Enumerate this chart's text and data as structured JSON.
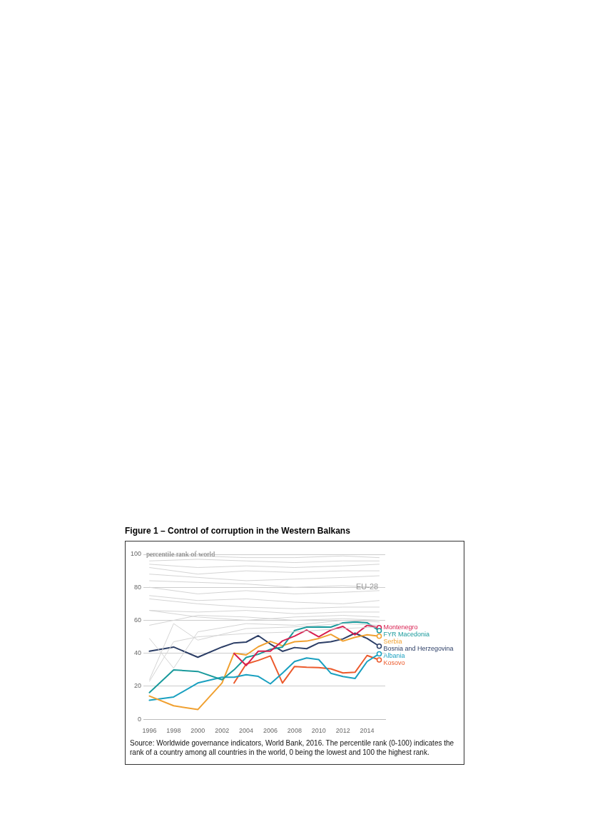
{
  "chart_data": {
    "type": "line",
    "title": "Figure 1 – Control of corruption in the Western Balkans",
    "ylabel": "percentile rank of world",
    "x": [
      1996,
      1998,
      2000,
      2002,
      2003,
      2004,
      2005,
      2006,
      2007,
      2008,
      2009,
      2010,
      2011,
      2012,
      2013,
      2014,
      2015
    ],
    "xlim": [
      1995.5,
      2015.5
    ],
    "xticks": [
      1996,
      1998,
      2000,
      2002,
      2004,
      2006,
      2008,
      2010,
      2012,
      2014
    ],
    "ylim": [
      0,
      100
    ],
    "yticks": [
      0,
      20,
      40,
      60,
      80,
      100
    ],
    "grid": "y",
    "line_style": "solid",
    "series": [
      {
        "color": "#d4d4d4",
        "x": [
          1996,
          2000,
          2004,
          2008,
          2012,
          2015
        ],
        "values": [
          99,
          99,
          98,
          98,
          99,
          98
        ]
      },
      {
        "color": "#d4d4d4",
        "x": [
          1996,
          2000,
          2004,
          2008,
          2012,
          2015
        ],
        "values": [
          96,
          97,
          96,
          95,
          96,
          96
        ]
      },
      {
        "color": "#d4d4d4",
        "x": [
          1996,
          2000,
          2004,
          2008,
          2012,
          2015
        ],
        "values": [
          94,
          92,
          93,
          92,
          93,
          94
        ]
      },
      {
        "color": "#d4d4d4",
        "x": [
          1996,
          2000,
          2004,
          2008,
          2012,
          2015
        ],
        "values": [
          92,
          88,
          90,
          89,
          90,
          90
        ]
      },
      {
        "color": "#d4d4d4",
        "x": [
          1996,
          2000,
          2004,
          2008,
          2012,
          2015
        ],
        "values": [
          88,
          86,
          84,
          85,
          86,
          87
        ]
      },
      {
        "color": "#d4d4d4",
        "x": [
          1996,
          2000,
          2004,
          2008,
          2012,
          2015
        ],
        "values": [
          84,
          83,
          82,
          80,
          81,
          80
        ]
      },
      {
        "color": "#d4d4d4",
        "x": [
          1996,
          2000,
          2004,
          2008,
          2012,
          2015
        ],
        "values": [
          80,
          76,
          78,
          76,
          77,
          78
        ]
      },
      {
        "color": "#d4d4d4",
        "x": [
          1996,
          2000,
          2004,
          2008,
          2012,
          2015
        ],
        "values": [
          75,
          72,
          73,
          71,
          70,
          72
        ]
      },
      {
        "color": "#d4d4d4",
        "x": [
          1996,
          2000,
          2004,
          2008,
          2012,
          2015
        ],
        "values": [
          73,
          70,
          68,
          67,
          68,
          68
        ]
      },
      {
        "color": "#d4d4d4",
        "x": [
          1996,
          2000,
          2004,
          2008,
          2012,
          2015
        ],
        "values": [
          66,
          65,
          66,
          64,
          65,
          65
        ]
      },
      {
        "color": "#d4d4d4",
        "x": [
          1996,
          2000,
          2004,
          2008,
          2012,
          2015
        ],
        "values": [
          66,
          62,
          60,
          62,
          63,
          62
        ]
      },
      {
        "color": "#d4d4d4",
        "x": [
          1996,
          2000,
          2004,
          2008,
          2012,
          2015
        ],
        "values": [
          57,
          63,
          62,
          60,
          61,
          60
        ]
      },
      {
        "color": "#d4d4d4",
        "x": [
          1996,
          1998,
          2000,
          2004,
          2008,
          2012,
          2015
        ],
        "values": [
          49,
          31,
          53,
          58,
          57,
          60,
          59
        ]
      },
      {
        "color": "#d4d4d4",
        "x": [
          1996,
          1998,
          2000,
          2004,
          2008,
          2012,
          2015
        ],
        "values": [
          24,
          58,
          48,
          55,
          56,
          58,
          57
        ]
      },
      {
        "color": "#d4d4d4",
        "x": [
          1996,
          1998,
          2000,
          2004,
          2008,
          2012,
          2015
        ],
        "values": [
          23,
          47,
          50,
          52,
          53,
          55,
          56
        ]
      },
      {
        "name": "Montenegro",
        "color": "#d81e4f",
        "values": [
          null,
          null,
          null,
          null,
          39.9,
          32.6,
          41.3,
          41.3,
          47.5,
          50.4,
          54.1,
          50,
          54.1,
          56.3,
          51.2,
          57,
          55.6
        ]
      },
      {
        "name": "FYR Macedonia",
        "color": "#1a9a9c",
        "values": [
          16.2,
          29.9,
          29,
          24,
          30,
          37.5,
          39.4,
          42.4,
          43.8,
          53.8,
          55.9,
          56,
          55.9,
          58.5,
          59,
          58.5,
          53.7
        ]
      },
      {
        "name": "Serbia",
        "color": "#f0a030",
        "values": [
          14.1,
          8.2,
          5.9,
          22,
          40.1,
          39,
          44,
          47.2,
          44.6,
          47,
          47.4,
          49,
          51.5,
          47.4,
          49.7,
          51.2,
          50.4
        ]
      },
      {
        "name": "Bosnia and Herzegovina",
        "color": "#2c3e66",
        "values": [
          41.3,
          43.8,
          37.6,
          43.8,
          46.3,
          46.8,
          50.7,
          45.6,
          41.2,
          43.5,
          42.8,
          46.3,
          47,
          48.7,
          52.2,
          49,
          44.3
        ]
      },
      {
        "name": "Albania",
        "color": "#1aa0c0",
        "values": [
          11.5,
          13.5,
          22,
          25.5,
          25.5,
          27,
          26,
          21.5,
          28,
          35,
          37.2,
          36.2,
          27.9,
          25.9,
          24.7,
          35,
          39.7
        ]
      },
      {
        "name": "Kosovo",
        "color": "#ec5a2c",
        "values": [
          null,
          null,
          null,
          null,
          22,
          33.5,
          35.7,
          38.4,
          22,
          32,
          31.5,
          31.3,
          30.6,
          28.1,
          28.5,
          38.7,
          36
        ]
      }
    ],
    "annotations": [
      {
        "text": "EU-28",
        "x": 2014,
        "y": 80
      },
      "Source: Worldwide governance indicators, World Bank, 2016. The percentile rank (0-100) indicates the rank of a country among all countries in the world, 0 being the lowest and 100 the highest rank."
    ]
  }
}
